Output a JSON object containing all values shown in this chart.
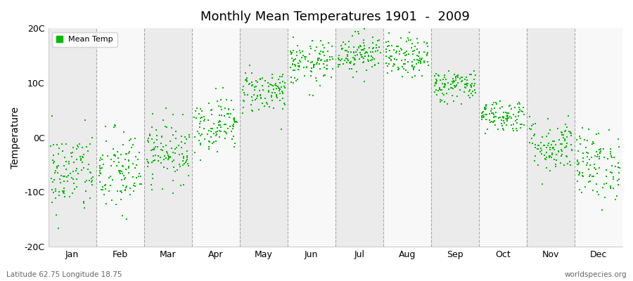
{
  "title": "Monthly Mean Temperatures 1901  -  2009",
  "ylabel": "Temperature",
  "ylim": [
    -20,
    20
  ],
  "yticks": [
    -20,
    -10,
    0,
    10,
    20
  ],
  "ytick_labels": [
    "-20C",
    "-10C",
    "0C",
    "10C",
    "20C"
  ],
  "months": [
    "Jan",
    "Feb",
    "Mar",
    "Apr",
    "May",
    "Jun",
    "Jul",
    "Aug",
    "Sep",
    "Oct",
    "Nov",
    "Dec"
  ],
  "month_means": [
    -6.5,
    -6.5,
    -2.5,
    2.5,
    8.5,
    13.5,
    15.5,
    14.5,
    9.5,
    4.0,
    -1.5,
    -5.0
  ],
  "month_stds": [
    3.8,
    4.0,
    2.8,
    2.5,
    2.0,
    2.0,
    1.8,
    1.8,
    1.5,
    1.5,
    2.5,
    3.2
  ],
  "n_years": 109,
  "dot_color": "#00bb00",
  "dot_size": 3,
  "bg_color": "#ffffff",
  "band_color_odd": "#ebebeb",
  "band_color_even": "#f8f8f8",
  "grid_color": "#888888",
  "legend_label": "Mean Temp",
  "bottom_left": "Latitude 62.75 Longitude 18.75",
  "bottom_right": "worldspecies.org",
  "seed": 42
}
